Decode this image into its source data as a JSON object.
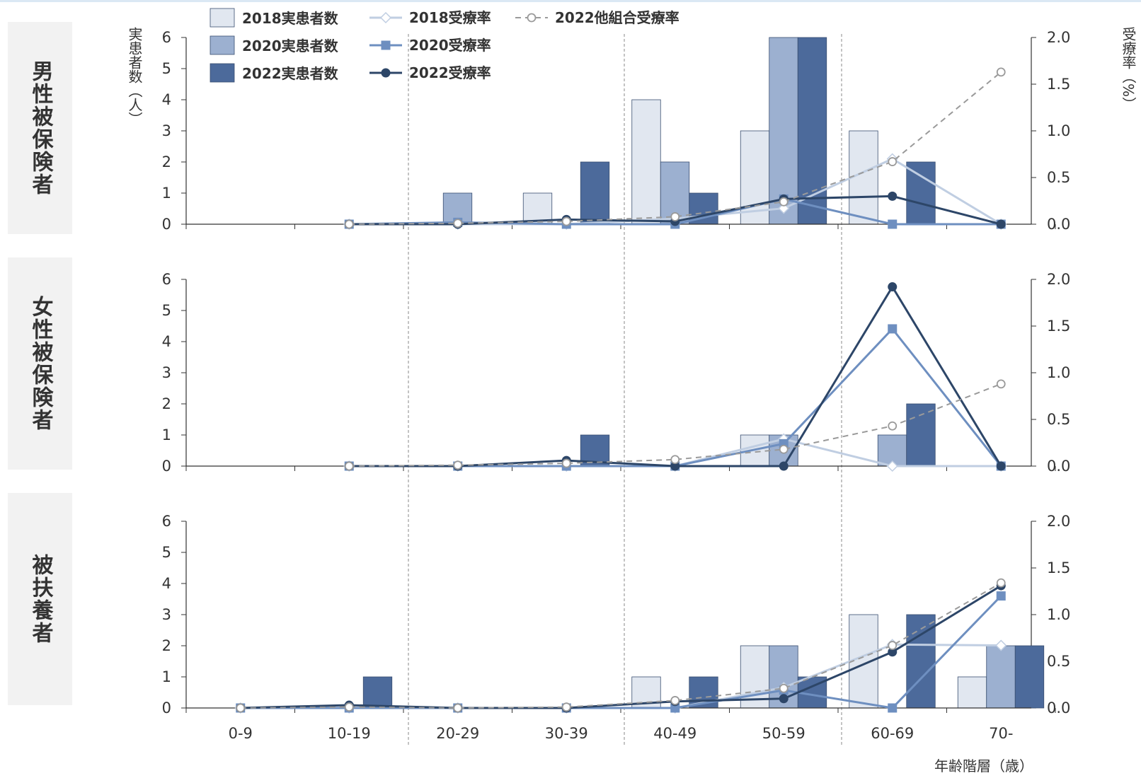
{
  "colors": {
    "bar2018": "#e1e7f0",
    "bar2020": "#9cb0d0",
    "bar2022": "#4c6a9b",
    "line2018": "#c0cee2",
    "line2020": "#6e8fc0",
    "line2022": "#2d4668",
    "lineOther": "#9a9a9a"
  },
  "legend": {
    "bar2018": "2018実患者数",
    "bar2020": "2020実患者数",
    "bar2022": "2022実患者数",
    "rate2018": "2018受療率",
    "rate2020": "2020受療率",
    "rate2022": "2022受療率",
    "rateOther": "2022他組合受療率"
  },
  "axes": {
    "y_left_label": "実患者数（人）",
    "y_right_label": "受療率（%）",
    "x_label": "年齢階層（歳）"
  },
  "chart_data": {
    "type": "bar",
    "categories": [
      "0-9",
      "10-19",
      "20-29",
      "30-39",
      "40-49",
      "50-59",
      "60-69",
      "70-"
    ],
    "y_left_ticks": [
      "0",
      "1",
      "2",
      "3",
      "4",
      "5",
      "6"
    ],
    "y_right_ticks": [
      "0.0",
      "0.5",
      "1.0",
      "1.5",
      "2.0"
    ],
    "ylim_left": [
      0,
      6
    ],
    "ylim_right": [
      0,
      2.0
    ],
    "panels": [
      {
        "label": "男性被保険者",
        "bars": {
          "2018": [
            null,
            0,
            0,
            1,
            4,
            3,
            3,
            0
          ],
          "2020": [
            null,
            0,
            1,
            0,
            2,
            6,
            0,
            0
          ],
          "2022": [
            null,
            0,
            0,
            2,
            1,
            6,
            2,
            0
          ]
        },
        "rates": {
          "2018": [
            null,
            0.0,
            0.0,
            0.0,
            0.06,
            0.17,
            0.7,
            0.0
          ],
          "2020": [
            null,
            0.0,
            0.02,
            0.0,
            0.0,
            0.27,
            0.0,
            0.0
          ],
          "2022": [
            null,
            0.0,
            0.0,
            0.05,
            0.03,
            0.27,
            0.3,
            0.0
          ],
          "other": [
            null,
            0.0,
            0.01,
            0.03,
            0.08,
            0.24,
            0.67,
            1.63
          ]
        }
      },
      {
        "label": "女性被保険者",
        "bars": {
          "2018": [
            null,
            0,
            0,
            0,
            0,
            1,
            0,
            0
          ],
          "2020": [
            null,
            0,
            0,
            0,
            0,
            1,
            1,
            0
          ],
          "2022": [
            null,
            0,
            0,
            1,
            0,
            0,
            2,
            0
          ]
        },
        "rates": {
          "2018": [
            null,
            0.0,
            0.0,
            0.0,
            0.0,
            0.29,
            0.0,
            0.0
          ],
          "2020": [
            null,
            0.0,
            0.0,
            0.0,
            0.0,
            0.24,
            1.47,
            0.0
          ],
          "2022": [
            null,
            0.0,
            0.0,
            0.06,
            0.0,
            0.0,
            1.92,
            0.0
          ],
          "other": [
            null,
            0.0,
            0.01,
            0.03,
            0.07,
            0.18,
            0.43,
            0.88
          ]
        }
      },
      {
        "label": "被扶養者",
        "bars": {
          "2018": [
            0,
            0,
            0,
            0,
            1,
            2,
            3,
            1
          ],
          "2020": [
            0,
            0,
            0,
            0,
            0,
            2,
            0,
            2
          ],
          "2022": [
            0,
            1,
            0,
            0,
            1,
            1,
            3,
            2
          ]
        },
        "rates": {
          "2018": [
            0.0,
            0.0,
            0.0,
            0.0,
            0.0,
            0.22,
            0.68,
            0.67
          ],
          "2020": [
            0.0,
            0.0,
            0.0,
            0.0,
            0.0,
            0.19,
            0.0,
            1.2
          ],
          "2022": [
            0.0,
            0.03,
            0.0,
            0.0,
            0.07,
            0.1,
            0.6,
            1.31
          ],
          "other": [
            0.0,
            0.01,
            0.0,
            0.01,
            0.08,
            0.21,
            0.67,
            1.34
          ]
        }
      }
    ]
  }
}
